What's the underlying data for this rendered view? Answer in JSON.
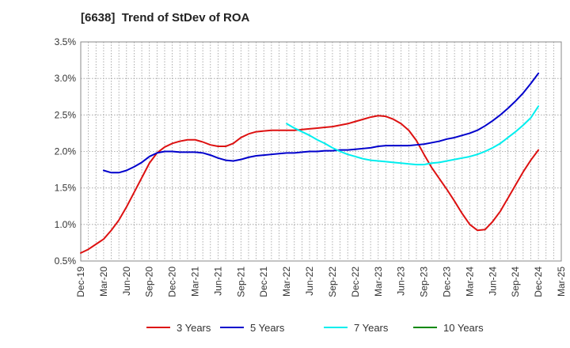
{
  "chart_data": {
    "type": "line",
    "title": "[6638]  Trend of StDev of ROA",
    "xlabel": "",
    "ylabel": "",
    "x_ticks": [
      "Dec-19",
      "Mar-20",
      "Jun-20",
      "Sep-20",
      "Dec-20",
      "Mar-21",
      "Jun-21",
      "Sep-21",
      "Dec-21",
      "Mar-22",
      "Jun-22",
      "Sep-22",
      "Dec-22",
      "Mar-23",
      "Jun-23",
      "Sep-23",
      "Dec-23",
      "Mar-24",
      "Jun-24",
      "Sep-24",
      "Dec-24",
      "Mar-25"
    ],
    "y_ticks": [
      "0.5%",
      "1.0%",
      "1.5%",
      "2.0%",
      "2.5%",
      "3.0%",
      "3.5%"
    ],
    "ylim": [
      0.5,
      3.5
    ],
    "y_unit": "%",
    "grid": true,
    "legend_position": "bottom",
    "series": [
      {
        "name": "3 Years",
        "color": "#dd1111",
        "points": [
          [
            "Dec-19",
            0.61
          ],
          [
            "Jan-20",
            0.66
          ],
          [
            "Feb-20",
            0.73
          ],
          [
            "Mar-20",
            0.8
          ],
          [
            "Apr-20",
            0.92
          ],
          [
            "May-20",
            1.06
          ],
          [
            "Jun-20",
            1.24
          ],
          [
            "Jul-20",
            1.44
          ],
          [
            "Aug-20",
            1.64
          ],
          [
            "Sep-20",
            1.84
          ],
          [
            "Oct-20",
            1.98
          ],
          [
            "Nov-20",
            2.06
          ],
          [
            "Dec-20",
            2.11
          ],
          [
            "Jan-21",
            2.14
          ],
          [
            "Feb-21",
            2.16
          ],
          [
            "Mar-21",
            2.16
          ],
          [
            "Apr-21",
            2.13
          ],
          [
            "May-21",
            2.09
          ],
          [
            "Jun-21",
            2.07
          ],
          [
            "Jul-21",
            2.07
          ],
          [
            "Aug-21",
            2.11
          ],
          [
            "Sep-21",
            2.19
          ],
          [
            "Oct-21",
            2.24
          ],
          [
            "Nov-21",
            2.27
          ],
          [
            "Dec-21",
            2.28
          ],
          [
            "Jan-22",
            2.29
          ],
          [
            "Feb-22",
            2.29
          ],
          [
            "Mar-22",
            2.29
          ],
          [
            "Apr-22",
            2.29
          ],
          [
            "May-22",
            2.3
          ],
          [
            "Jun-22",
            2.31
          ],
          [
            "Jul-22",
            2.32
          ],
          [
            "Aug-22",
            2.33
          ],
          [
            "Sep-22",
            2.34
          ],
          [
            "Oct-22",
            2.36
          ],
          [
            "Nov-22",
            2.38
          ],
          [
            "Dec-22",
            2.41
          ],
          [
            "Jan-23",
            2.44
          ],
          [
            "Feb-23",
            2.47
          ],
          [
            "Mar-23",
            2.49
          ],
          [
            "Apr-23",
            2.48
          ],
          [
            "May-23",
            2.44
          ],
          [
            "Jun-23",
            2.38
          ],
          [
            "Jul-23",
            2.29
          ],
          [
            "Aug-23",
            2.15
          ],
          [
            "Sep-23",
            1.96
          ],
          [
            "Oct-23",
            1.78
          ],
          [
            "Nov-23",
            1.63
          ],
          [
            "Dec-23",
            1.48
          ],
          [
            "Jan-24",
            1.32
          ],
          [
            "Feb-24",
            1.15
          ],
          [
            "Mar-24",
            1.0
          ],
          [
            "Apr-24",
            0.92
          ],
          [
            "May-24",
            0.93
          ],
          [
            "Jun-24",
            1.04
          ],
          [
            "Jul-24",
            1.18
          ],
          [
            "Aug-24",
            1.36
          ],
          [
            "Sep-24",
            1.54
          ],
          [
            "Oct-24",
            1.72
          ],
          [
            "Nov-24",
            1.88
          ],
          [
            "Dec-24",
            2.02
          ]
        ]
      },
      {
        "name": "5 Years",
        "color": "#0000cc",
        "points": [
          [
            "Mar-20",
            1.74
          ],
          [
            "Apr-20",
            1.71
          ],
          [
            "May-20",
            1.71
          ],
          [
            "Jun-20",
            1.74
          ],
          [
            "Jul-20",
            1.79
          ],
          [
            "Aug-20",
            1.85
          ],
          [
            "Sep-20",
            1.93
          ],
          [
            "Oct-20",
            1.98
          ],
          [
            "Nov-20",
            2.0
          ],
          [
            "Dec-20",
            2.0
          ],
          [
            "Jan-21",
            1.99
          ],
          [
            "Feb-21",
            1.99
          ],
          [
            "Mar-21",
            1.99
          ],
          [
            "Apr-21",
            1.98
          ],
          [
            "May-21",
            1.95
          ],
          [
            "Jun-21",
            1.91
          ],
          [
            "Jul-21",
            1.88
          ],
          [
            "Aug-21",
            1.87
          ],
          [
            "Sep-21",
            1.89
          ],
          [
            "Oct-21",
            1.92
          ],
          [
            "Nov-21",
            1.94
          ],
          [
            "Dec-21",
            1.95
          ],
          [
            "Jan-22",
            1.96
          ],
          [
            "Feb-22",
            1.97
          ],
          [
            "Mar-22",
            1.98
          ],
          [
            "Apr-22",
            1.98
          ],
          [
            "May-22",
            1.99
          ],
          [
            "Jun-22",
            2.0
          ],
          [
            "Jul-22",
            2.0
          ],
          [
            "Aug-22",
            2.01
          ],
          [
            "Sep-22",
            2.01
          ],
          [
            "Oct-22",
            2.02
          ],
          [
            "Nov-22",
            2.02
          ],
          [
            "Dec-22",
            2.03
          ],
          [
            "Jan-23",
            2.04
          ],
          [
            "Feb-23",
            2.05
          ],
          [
            "Mar-23",
            2.07
          ],
          [
            "Apr-23",
            2.08
          ],
          [
            "May-23",
            2.08
          ],
          [
            "Jun-23",
            2.08
          ],
          [
            "Jul-23",
            2.08
          ],
          [
            "Aug-23",
            2.09
          ],
          [
            "Sep-23",
            2.1
          ],
          [
            "Oct-23",
            2.12
          ],
          [
            "Nov-23",
            2.14
          ],
          [
            "Dec-23",
            2.17
          ],
          [
            "Jan-24",
            2.19
          ],
          [
            "Feb-24",
            2.22
          ],
          [
            "Mar-24",
            2.25
          ],
          [
            "Apr-24",
            2.29
          ],
          [
            "May-24",
            2.35
          ],
          [
            "Jun-24",
            2.42
          ],
          [
            "Jul-24",
            2.5
          ],
          [
            "Aug-24",
            2.59
          ],
          [
            "Sep-24",
            2.69
          ],
          [
            "Oct-24",
            2.8
          ],
          [
            "Nov-24",
            2.93
          ],
          [
            "Dec-24",
            3.07
          ]
        ]
      },
      {
        "name": "7 Years",
        "color": "#00eeee",
        "points": [
          [
            "Mar-22",
            2.38
          ],
          [
            "Apr-22",
            2.32
          ],
          [
            "May-22",
            2.27
          ],
          [
            "Jun-22",
            2.22
          ],
          [
            "Jul-22",
            2.16
          ],
          [
            "Aug-22",
            2.11
          ],
          [
            "Sep-22",
            2.05
          ],
          [
            "Oct-22",
            2.0
          ],
          [
            "Nov-22",
            1.96
          ],
          [
            "Dec-22",
            1.93
          ],
          [
            "Jan-23",
            1.9
          ],
          [
            "Feb-23",
            1.88
          ],
          [
            "Mar-23",
            1.87
          ],
          [
            "Apr-23",
            1.86
          ],
          [
            "May-23",
            1.85
          ],
          [
            "Jun-23",
            1.84
          ],
          [
            "Jul-23",
            1.83
          ],
          [
            "Aug-23",
            1.82
          ],
          [
            "Sep-23",
            1.82
          ],
          [
            "Oct-23",
            1.84
          ],
          [
            "Nov-23",
            1.85
          ],
          [
            "Dec-23",
            1.87
          ],
          [
            "Jan-24",
            1.89
          ],
          [
            "Feb-24",
            1.91
          ],
          [
            "Mar-24",
            1.93
          ],
          [
            "Apr-24",
            1.96
          ],
          [
            "May-24",
            2.0
          ],
          [
            "Jun-24",
            2.05
          ],
          [
            "Jul-24",
            2.11
          ],
          [
            "Aug-24",
            2.19
          ],
          [
            "Sep-24",
            2.27
          ],
          [
            "Oct-24",
            2.36
          ],
          [
            "Nov-24",
            2.46
          ],
          [
            "Dec-24",
            2.62
          ]
        ]
      },
      {
        "name": "10 Years",
        "color": "#008800",
        "points": []
      }
    ]
  }
}
